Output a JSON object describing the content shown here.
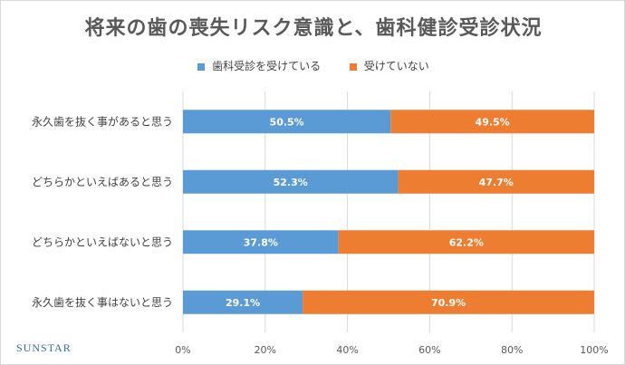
{
  "chart_data": {
    "type": "bar",
    "orientation": "horizontal",
    "stacked": true,
    "title": "将来の歯の喪失リスク意識と、歯科健診受診状況",
    "categories": [
      "永久歯を抜く事があると思う",
      "どちらかといえばあると思う",
      "どちらかといえばないと思う",
      "永久歯を抜く事はないと思う"
    ],
    "series": [
      {
        "name": "歯科受診を受けている",
        "color": "#5b9bd5",
        "values": [
          50.5,
          52.3,
          37.8,
          29.1
        ],
        "labels": [
          "50.5%",
          "52.3%",
          "37.8%",
          "29.1%"
        ]
      },
      {
        "name": "受けていない",
        "color": "#ed7d31",
        "values": [
          49.5,
          47.7,
          62.2,
          70.9
        ],
        "labels": [
          "49.5%",
          "47.7%",
          "62.2%",
          "70.9%"
        ]
      }
    ],
    "xlim": [
      0,
      100
    ],
    "xticks": [
      0,
      20,
      40,
      60,
      80,
      100
    ],
    "xtick_labels": [
      "0%",
      "20%",
      "40%",
      "60%",
      "80%",
      "100%"
    ],
    "grid": true,
    "legend_position": "top"
  },
  "brand": "SUNSTAR"
}
